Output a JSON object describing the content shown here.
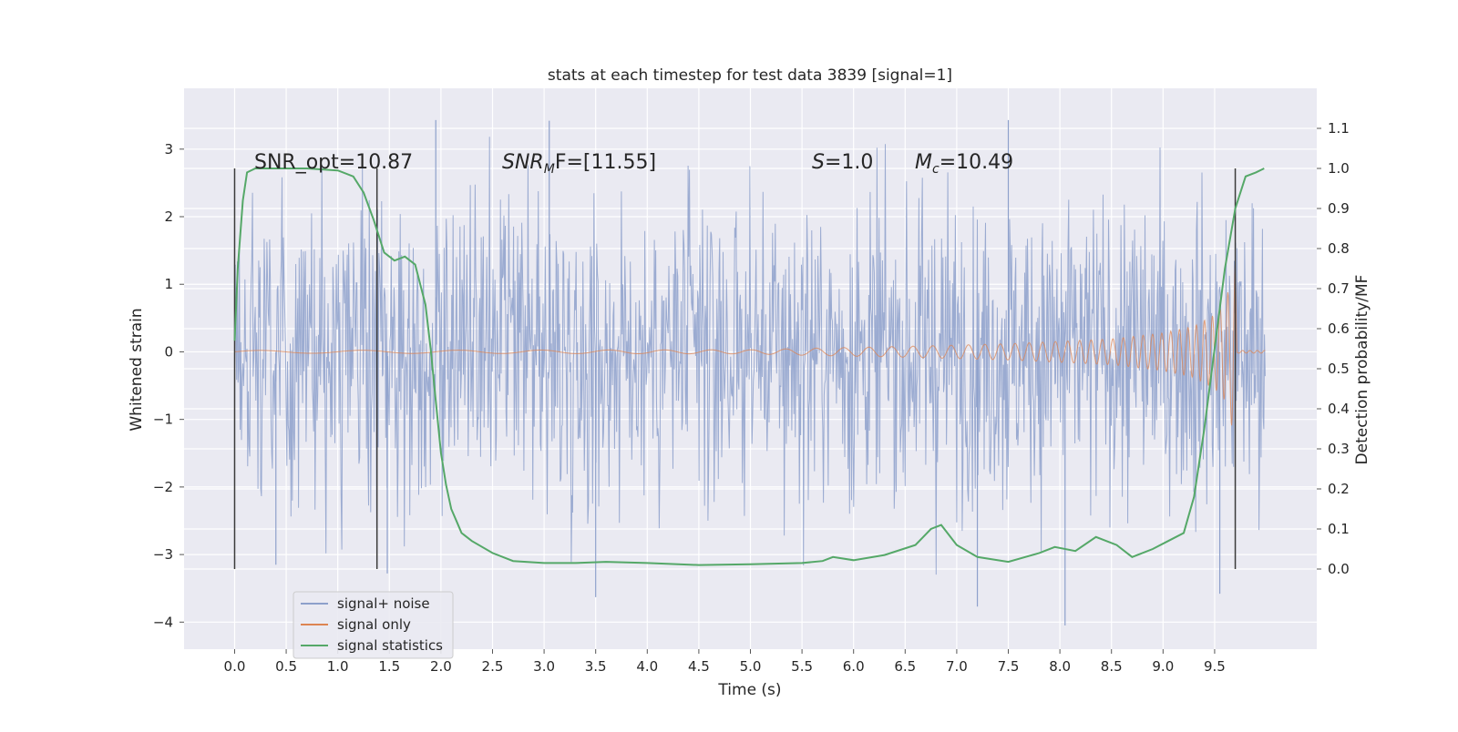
{
  "chart_data": {
    "type": "line",
    "title": "stats at each timestep for test data 3839 [signal=1]",
    "xlabel": "Time (s)",
    "ylabel": "Whitened strain",
    "ylabel_right": "Detection probability/MF",
    "xlim": [
      -0.49,
      10.49
    ],
    "ylim": [
      -4.4,
      3.9
    ],
    "ylim_right": [
      -0.2,
      1.2
    ],
    "x_ticks": [
      "0.0",
      "0.5",
      "1.0",
      "1.5",
      "2.0",
      "2.5",
      "3.0",
      "3.5",
      "4.0",
      "4.5",
      "5.0",
      "5.5",
      "6.0",
      "6.5",
      "7.0",
      "7.5",
      "8.0",
      "8.5",
      "9.0",
      "9.5"
    ],
    "x_tick_values": [
      0,
      0.5,
      1,
      1.5,
      2,
      2.5,
      3,
      3.5,
      4,
      4.5,
      5,
      5.5,
      6,
      6.5,
      7,
      7.5,
      8,
      8.5,
      9,
      9.5
    ],
    "y_ticks": [
      "3",
      "2",
      "1",
      "0",
      "−1",
      "−2",
      "−3",
      "−4"
    ],
    "y_tick_values": [
      3,
      2,
      1,
      0,
      -1,
      -2,
      -3,
      -4
    ],
    "y_ticks_right": [
      "1.1",
      "1.0",
      "0.9",
      "0.8",
      "0.7",
      "0.6",
      "0.5",
      "0.4",
      "0.3",
      "0.2",
      "0.1",
      "0.0"
    ],
    "y_tick_values_right": [
      1.1,
      1.0,
      0.9,
      0.8,
      0.7,
      0.6,
      0.5,
      0.4,
      0.3,
      0.2,
      0.1,
      0.0
    ],
    "grid": true,
    "legend_position": "lower-left",
    "annotations": [
      {
        "text": "SNR_opt=10.87"
      },
      {
        "text": "F=[11.55]",
        "base": "SNR",
        "sub": "M"
      },
      {
        "text": "=1.0",
        "base": "S"
      },
      {
        "text": "=10.49",
        "base": "M",
        "sub": "c"
      }
    ],
    "vertical_markers_x": [
      0.0,
      1.38,
      9.7
    ],
    "series": [
      {
        "name": "signal+ noise",
        "color": "#8da0cb",
        "x_range": [
          0.0,
          9.99
        ],
        "envelope": {
          "x": [
            0,
            0.2,
            9.2,
            9.5,
            9.7,
            9.99
          ],
          "amplitude": [
            1.55,
            1.8,
            1.8,
            1.8,
            1.9,
            1.8
          ]
        },
        "peaks_y": [
          3.43,
          3.42,
          3.43,
          -3.63,
          -3.77,
          -4.05,
          -3.58,
          -3.15,
          -3.28
        ]
      },
      {
        "name": "signal only",
        "color": "#dd8452",
        "x": [
          0,
          5.0,
          5.5,
          6.5,
          7.5,
          8.5,
          9.0,
          9.3,
          9.5,
          9.6,
          9.7,
          9.72,
          9.99
        ],
        "amplitude": [
          0.02,
          0.03,
          0.05,
          0.08,
          0.12,
          0.19,
          0.28,
          0.38,
          0.55,
          0.72,
          1.3,
          0.02,
          0.02
        ]
      },
      {
        "name": "signal statistics",
        "color": "#55a868",
        "axis": "right",
        "x": [
          0.0,
          0.03,
          0.08,
          0.12,
          0.2,
          0.4,
          0.7,
          1.0,
          1.15,
          1.25,
          1.35,
          1.45,
          1.55,
          1.65,
          1.75,
          1.85,
          1.9,
          1.95,
          2.0,
          2.05,
          2.1,
          2.15,
          2.2,
          2.3,
          2.5,
          2.7,
          3.0,
          3.3,
          3.6,
          4.0,
          4.5,
          5.0,
          5.5,
          5.7,
          5.8,
          6.0,
          6.3,
          6.6,
          6.75,
          6.85,
          7.0,
          7.2,
          7.5,
          7.8,
          7.95,
          8.15,
          8.35,
          8.55,
          8.7,
          8.9,
          9.05,
          9.2,
          9.3,
          9.4,
          9.5,
          9.6,
          9.7,
          9.8,
          9.9,
          9.98
        ],
        "y": [
          0.57,
          0.75,
          0.92,
          0.99,
          1.0,
          1.0,
          1.0,
          0.995,
          0.98,
          0.94,
          0.87,
          0.79,
          0.77,
          0.78,
          0.76,
          0.66,
          0.55,
          0.42,
          0.29,
          0.21,
          0.15,
          0.12,
          0.09,
          0.07,
          0.04,
          0.02,
          0.015,
          0.015,
          0.018,
          0.015,
          0.01,
          0.012,
          0.015,
          0.02,
          0.03,
          0.022,
          0.035,
          0.06,
          0.1,
          0.11,
          0.06,
          0.03,
          0.018,
          0.04,
          0.055,
          0.045,
          0.08,
          0.06,
          0.03,
          0.05,
          0.07,
          0.09,
          0.18,
          0.35,
          0.55,
          0.75,
          0.9,
          0.98,
          0.99,
          1.0
        ]
      }
    ]
  }
}
